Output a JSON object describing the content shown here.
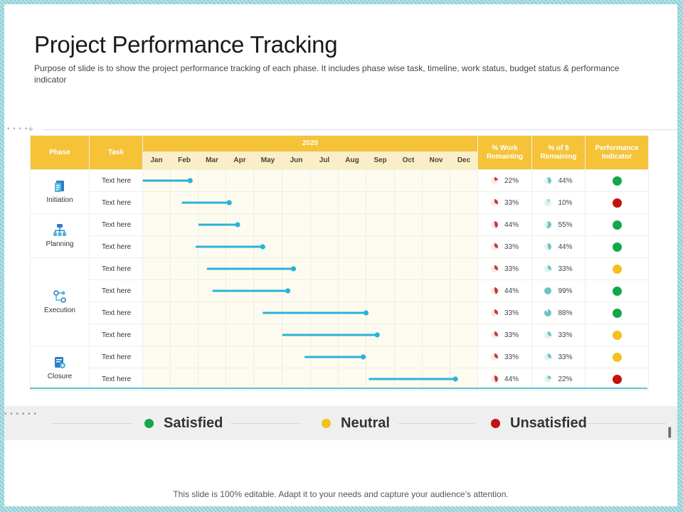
{
  "title": "Project Performance Tracking",
  "subtitle": "Purpose of slide is to show the project performance tracking of each phase. It includes phase wise task, timeline, work status, budget status & performance indicator",
  "table": {
    "headers": {
      "phase": "Phase",
      "task": "Task",
      "year": "2020",
      "work_remaining": "% Work Remaining",
      "budget_remaining": "% of $ Remaining",
      "performance": "Performance Indicator"
    },
    "months": [
      "Jan",
      "Feb",
      "Mar",
      "Apr",
      "May",
      "Jun",
      "Jul",
      "Aug",
      "Sep",
      "Oct",
      "Nov",
      "Dec"
    ],
    "phases": [
      {
        "name": "Initiation",
        "icon": "document-icon",
        "rowspan": 2
      },
      {
        "name": "Planning",
        "icon": "hierarchy-icon",
        "rowspan": 2
      },
      {
        "name": "Execution",
        "icon": "nodes-icon",
        "rowspan": 4
      },
      {
        "name": "Closure",
        "icon": "report-icon",
        "rowspan": 2
      }
    ],
    "rows": [
      {
        "task": "Text here",
        "start_month": 0.0,
        "end_month": 1.7,
        "work": "22%",
        "budget": "44%",
        "status": "satisfied"
      },
      {
        "task": "Text here",
        "start_month": 1.4,
        "end_month": 3.1,
        "work": "33%",
        "budget": "10%",
        "status": "unsatisfied"
      },
      {
        "task": "Text here",
        "start_month": 2.0,
        "end_month": 3.4,
        "work": "44%",
        "budget": "55%",
        "status": "satisfied"
      },
      {
        "task": "Text here",
        "start_month": 1.9,
        "end_month": 4.3,
        "work": "33%",
        "budget": "44%",
        "status": "satisfied"
      },
      {
        "task": "Text here",
        "start_month": 2.3,
        "end_month": 5.4,
        "work": "33%",
        "budget": "33%",
        "status": "neutral"
      },
      {
        "task": "Text here",
        "start_month": 2.5,
        "end_month": 5.2,
        "work": "44%",
        "budget": "99%",
        "status": "satisfied"
      },
      {
        "task": "Text here",
        "start_month": 4.3,
        "end_month": 8.0,
        "work": "33%",
        "budget": "88%",
        "status": "satisfied"
      },
      {
        "task": "Text here",
        "start_month": 5.0,
        "end_month": 8.4,
        "work": "33%",
        "budget": "33%",
        "status": "neutral"
      },
      {
        "task": "Text here",
        "start_month": 5.8,
        "end_month": 7.9,
        "work": "33%",
        "budget": "33%",
        "status": "neutral"
      },
      {
        "task": "Text here",
        "start_month": 8.1,
        "end_month": 11.2,
        "work": "44%",
        "budget": "22%",
        "status": "unsatisfied"
      }
    ]
  },
  "legend": {
    "satisfied": {
      "label": "Satisfied",
      "color": "#12a84a"
    },
    "neutral": {
      "label": "Neutral",
      "color": "#f4c01e"
    },
    "unsatisfied": {
      "label": "Unsatisfied",
      "color": "#c4120f"
    }
  },
  "colors": {
    "header": "#f5c238",
    "bar": "#29b3d9",
    "work_pie": "#c93a34",
    "budget_pie": "#6cc3c4"
  },
  "footer": "This slide is 100% editable. Adapt it to your needs and capture your audience’s attention."
}
